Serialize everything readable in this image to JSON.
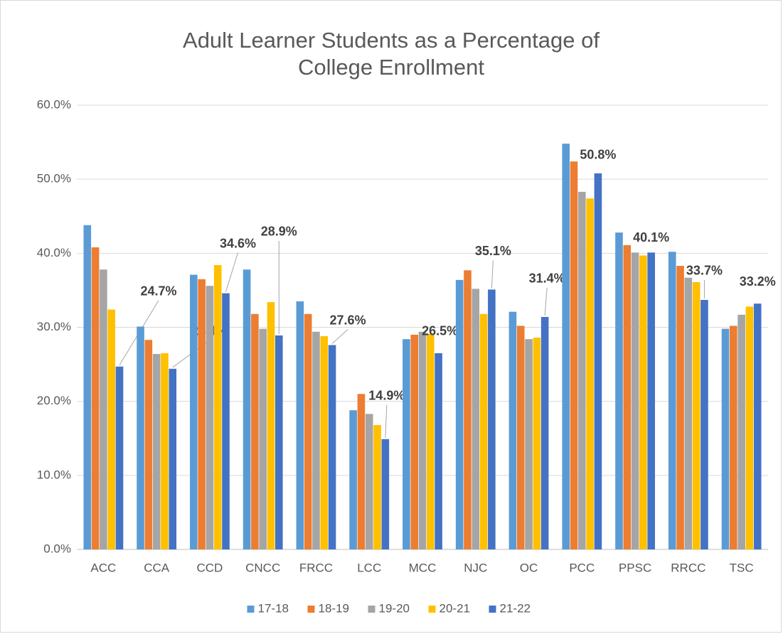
{
  "chart_data": {
    "type": "bar",
    "title": "Adult Learner Students as a Percentage of College Enrollment",
    "categories": [
      "ACC",
      "CCA",
      "CCD",
      "CNCC",
      "FRCC",
      "LCC",
      "MCC",
      "NJC",
      "OC",
      "PCC",
      "PPSC",
      "RRCC",
      "TSC"
    ],
    "series": [
      {
        "name": "17-18",
        "color": "#5b9bd5",
        "values": [
          43.8,
          30.1,
          37.1,
          37.8,
          33.5,
          18.8,
          28.4,
          36.4,
          32.1,
          54.8,
          42.8,
          40.2,
          29.8
        ]
      },
      {
        "name": "18-19",
        "color": "#ed7d31",
        "values": [
          40.8,
          28.3,
          36.5,
          31.8,
          31.8,
          21.0,
          29.0,
          37.7,
          30.2,
          52.4,
          41.1,
          38.3,
          30.2
        ]
      },
      {
        "name": "19-20",
        "color": "#a5a5a5",
        "values": [
          37.8,
          26.4,
          35.6,
          29.8,
          29.4,
          18.3,
          29.4,
          35.2,
          28.4,
          48.3,
          40.1,
          36.7,
          31.7
        ]
      },
      {
        "name": "20-21",
        "color": "#ffc000",
        "values": [
          32.4,
          26.5,
          38.4,
          33.4,
          28.8,
          16.8,
          29.1,
          31.8,
          28.6,
          47.4,
          39.7,
          36.1,
          32.8
        ]
      },
      {
        "name": "21-22",
        "color": "#4472c4",
        "values": [
          24.7,
          24.4,
          34.6,
          28.9,
          27.6,
          14.9,
          26.5,
          35.1,
          31.4,
          50.8,
          40.1,
          33.7,
          33.2
        ],
        "value_labels": [
          "24.7%",
          "24.4%",
          "34.6%",
          "28.9%",
          "27.6%",
          "14.9%",
          "26.5%",
          "35.1%",
          "31.4%",
          "50.8%",
          "40.1%",
          "33.7%",
          "33.2%"
        ]
      }
    ],
    "ylim": [
      0,
      60
    ],
    "yticks": [
      {
        "value": 0,
        "label": "0.0%"
      },
      {
        "value": 10,
        "label": "10.0%"
      },
      {
        "value": 20,
        "label": "20.0%"
      },
      {
        "value": 30,
        "label": "30.0%"
      },
      {
        "value": 40,
        "label": "40.0%"
      },
      {
        "value": 50,
        "label": "50.0%"
      },
      {
        "value": 60,
        "label": "60.0%"
      }
    ],
    "grid": true,
    "legend": "bottom"
  }
}
